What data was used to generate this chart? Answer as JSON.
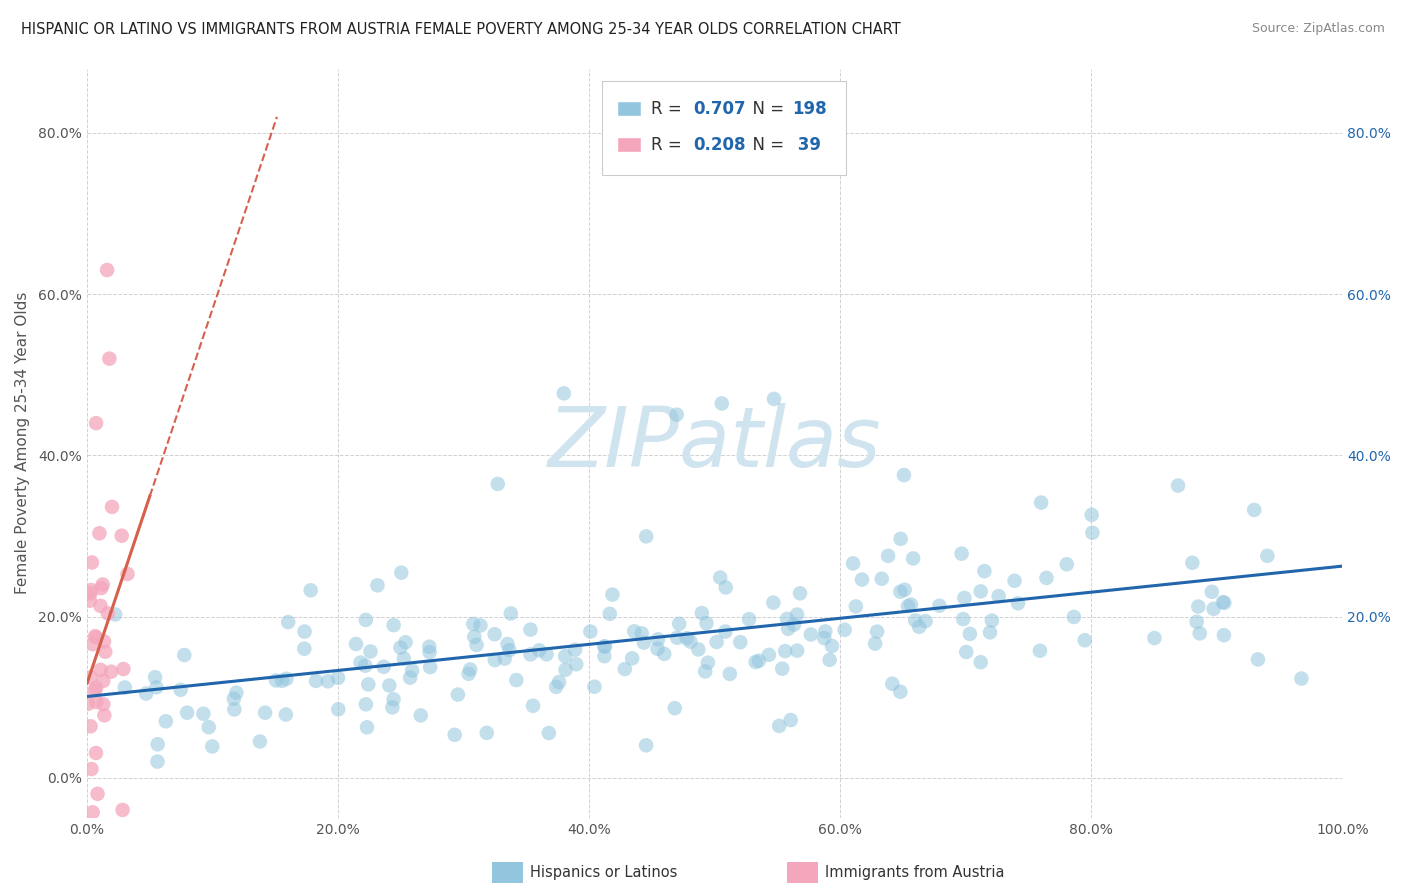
{
  "title": "HISPANIC OR LATINO VS IMMIGRANTS FROM AUSTRIA FEMALE POVERTY AMONG 25-34 YEAR OLDS CORRELATION CHART",
  "source": "Source: ZipAtlas.com",
  "ylabel": "Female Poverty Among 25-34 Year Olds",
  "watermark": "ZIPatlas",
  "xlim": [
    0,
    1.0
  ],
  "ylim": [
    -0.05,
    0.88
  ],
  "x_ticks": [
    0.0,
    0.2,
    0.4,
    0.6,
    0.8,
    1.0
  ],
  "x_tick_labels": [
    "0.0%",
    "20.0%",
    "40.0%",
    "60.0%",
    "80.0%",
    "100.0%"
  ],
  "y_ticks": [
    0.0,
    0.2,
    0.4,
    0.6,
    0.8
  ],
  "y_tick_labels": [
    "0.0%",
    "20.0%",
    "40.0%",
    "60.0%",
    "80.0%"
  ],
  "right_y_ticks": [
    0.2,
    0.4,
    0.6,
    0.8
  ],
  "right_y_tick_labels": [
    "20.0%",
    "40.0%",
    "60.0%",
    "80.0%"
  ],
  "blue_color": "#92c5de",
  "pink_color": "#f4a6bc",
  "blue_line_color": "#2166ac",
  "pink_line_color": "#d6604d",
  "R_blue": 0.707,
  "N_blue": 198,
  "R_pink": 0.208,
  "N_pink": 39,
  "legend_R_N_color": "#2166ac",
  "title_fontsize": 10.5,
  "axis_label_fontsize": 11,
  "tick_fontsize": 10,
  "watermark_fontsize": 60,
  "watermark_color": "#d0e4f0",
  "background_color": "#ffffff",
  "grid_color": "#cccccc"
}
